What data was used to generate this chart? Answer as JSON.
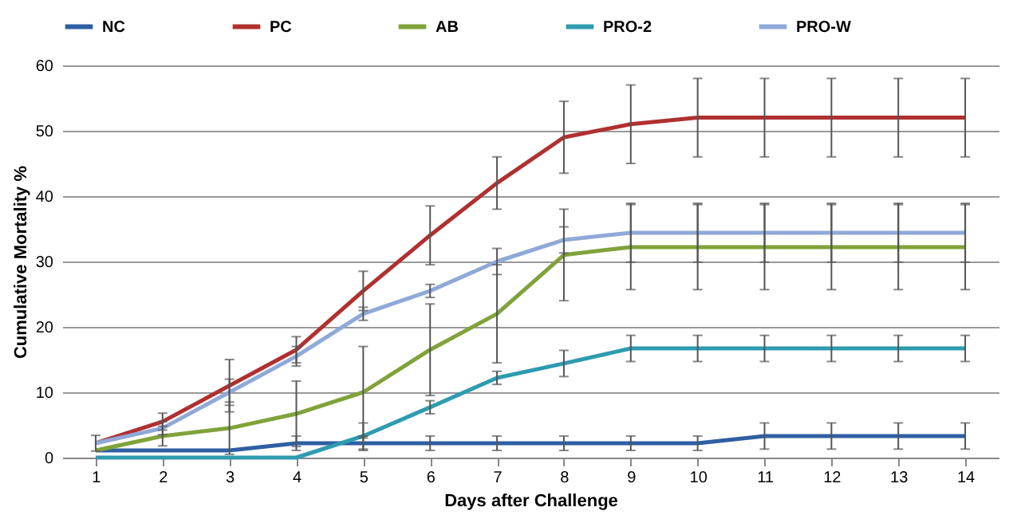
{
  "chart_data": {
    "type": "line",
    "xlabel": "Days after Challenge",
    "ylabel": "Cumulative Mortality %",
    "x": [
      1,
      2,
      3,
      4,
      5,
      6,
      7,
      8,
      9,
      10,
      11,
      12,
      13,
      14
    ],
    "xlim": [
      0.5,
      14.5
    ],
    "xticks": [
      1,
      2,
      3,
      4,
      5,
      6,
      7,
      8,
      9,
      10,
      11,
      12,
      13,
      14
    ],
    "ylim": [
      0,
      60
    ],
    "yticks": [
      0,
      10,
      20,
      30,
      40,
      50,
      60
    ],
    "grid": "y",
    "legend": "top",
    "marker": "none",
    "line_style": "solid",
    "series": [
      {
        "name": "NC",
        "color": "#2e5fa3",
        "values": [
          1.1,
          1.1,
          1.1,
          2.2,
          2.2,
          2.2,
          2.2,
          2.2,
          2.2,
          2.2,
          3.3,
          3.3,
          3.3,
          3.3
        ],
        "errors": [
          null,
          null,
          null,
          1.1,
          1.1,
          1.1,
          1.1,
          1.1,
          1.1,
          1.1,
          2,
          2,
          2,
          2
        ]
      },
      {
        "name": "PC",
        "color": "#b03030",
        "values": [
          2.2,
          5.5,
          11,
          16.5,
          25.5,
          34,
          42,
          49,
          51,
          52,
          52,
          52,
          52,
          52
        ],
        "errors": [
          1.2,
          1.3,
          4,
          2,
          3,
          4.5,
          4,
          5.5,
          6,
          6,
          6,
          6,
          6,
          6
        ]
      },
      {
        "name": "AB",
        "color": "#7fa33a",
        "values": [
          1.1,
          3.3,
          4.5,
          6.7,
          10,
          16.5,
          22,
          31,
          32.2,
          32.2,
          32.2,
          32.2,
          32.2,
          32.2
        ],
        "errors": [
          null,
          1.5,
          4,
          5,
          7,
          7,
          7.5,
          7,
          6.5,
          6.5,
          6.5,
          6.5,
          6.5,
          6.5
        ]
      },
      {
        "name": "PRO-2",
        "color": "#2e9bb0",
        "values": [
          0,
          0,
          0,
          0,
          3.3,
          7.7,
          12.2,
          14.4,
          16.7,
          16.7,
          16.7,
          16.7,
          16.7,
          16.7
        ],
        "errors": [
          null,
          null,
          null,
          null,
          2,
          1,
          1,
          2,
          2,
          2,
          2,
          2,
          2,
          2
        ]
      },
      {
        "name": "PRO-W",
        "color": "#8fa9d8",
        "values": [
          2.2,
          4.5,
          10,
          15.5,
          22,
          25.5,
          30,
          33.3,
          34.4,
          34.4,
          34.4,
          34.4,
          34.4,
          34.4
        ],
        "errors": [
          null,
          1,
          2,
          1.5,
          1,
          1,
          2,
          2,
          4.5,
          4.5,
          4.5,
          4.5,
          4.5,
          4.5
        ]
      }
    ]
  }
}
